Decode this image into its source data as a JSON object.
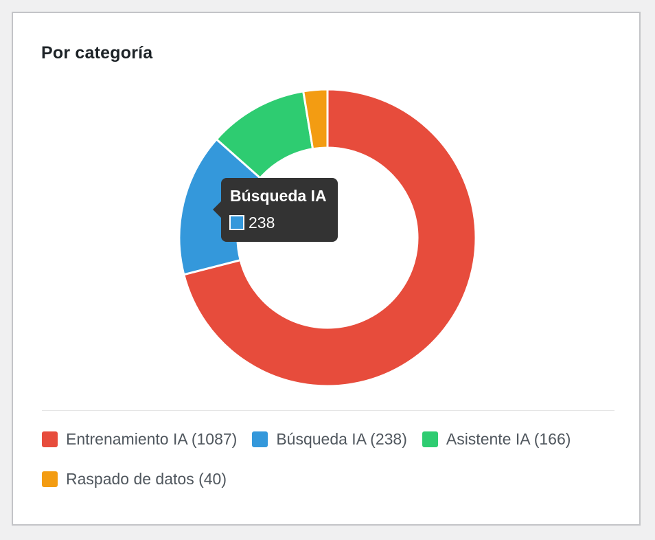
{
  "card": {
    "title": "Por categoría"
  },
  "chart_data": {
    "type": "pie",
    "subtype": "doughnut",
    "title": "",
    "categories": [
      "Entrenamiento IA",
      "Búsqueda IA",
      "Asistente IA",
      "Raspado de datos"
    ],
    "values": [
      1087,
      238,
      166,
      40
    ],
    "colors": [
      "#e74c3c",
      "#3498db",
      "#2ecc71",
      "#f39c12"
    ],
    "legend_position": "bottom"
  },
  "legend": {
    "items": [
      {
        "label": "Entrenamiento IA (1087)",
        "color": "#e74c3c"
      },
      {
        "label": "Búsqueda IA (238)",
        "color": "#3498db"
      },
      {
        "label": "Asistente IA (166)",
        "color": "#2ecc71"
      },
      {
        "label": "Raspado de datos (40)",
        "color": "#f39c12"
      }
    ]
  },
  "tooltip": {
    "title": "Búsqueda IA",
    "value": "238",
    "color": "#3498db"
  }
}
